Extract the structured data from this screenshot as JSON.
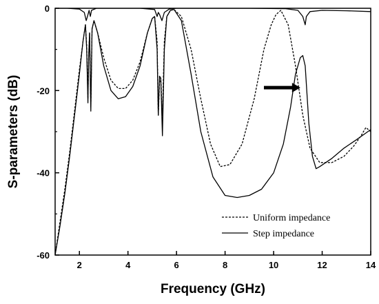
{
  "chart_data": {
    "type": "line",
    "xlabel": "Frequency (GHz)",
    "ylabel": "S-parameters (dB)",
    "xlim": [
      1,
      14
    ],
    "ylim": [
      -60,
      0
    ],
    "xticks": [
      2,
      4,
      6,
      8,
      10,
      12,
      14
    ],
    "yticks": [
      0,
      -20,
      -40,
      -60
    ],
    "grid": false,
    "legend": {
      "position": "bottom-right"
    },
    "annotation": {
      "type": "arrow",
      "from": [
        9.6,
        -19.3
      ],
      "to": [
        11.1,
        -19.3
      ]
    },
    "series": [
      {
        "name": "Uniform impedance",
        "style": "dashed",
        "color": "#000000",
        "points": [
          [
            1.0,
            -60
          ],
          [
            1.2,
            -52
          ],
          [
            1.4,
            -44
          ],
          [
            1.6,
            -35
          ],
          [
            1.8,
            -25
          ],
          [
            2.0,
            -15
          ],
          [
            2.15,
            -8
          ],
          [
            2.25,
            -4
          ],
          [
            2.3,
            -9
          ],
          [
            2.35,
            -22
          ],
          [
            2.38,
            -12
          ],
          [
            2.42,
            -6
          ],
          [
            2.47,
            -24
          ],
          [
            2.52,
            -5
          ],
          [
            2.6,
            -3
          ],
          [
            2.75,
            -6
          ],
          [
            3.0,
            -12
          ],
          [
            3.3,
            -17.5
          ],
          [
            3.6,
            -19.5
          ],
          [
            3.9,
            -19.5
          ],
          [
            4.2,
            -17.5
          ],
          [
            4.5,
            -13
          ],
          [
            4.8,
            -6
          ],
          [
            5.0,
            -2.5
          ],
          [
            5.1,
            -2
          ],
          [
            5.2,
            -8
          ],
          [
            5.25,
            -26
          ],
          [
            5.3,
            -18
          ],
          [
            5.35,
            -17
          ],
          [
            5.42,
            -26
          ],
          [
            5.5,
            -8
          ],
          [
            5.6,
            -2
          ],
          [
            5.75,
            -0.5
          ],
          [
            5.9,
            -0.3
          ],
          [
            6.2,
            -2
          ],
          [
            6.6,
            -10
          ],
          [
            7.0,
            -22
          ],
          [
            7.4,
            -33
          ],
          [
            7.8,
            -38.5
          ],
          [
            8.2,
            -38
          ],
          [
            8.7,
            -33
          ],
          [
            9.2,
            -22
          ],
          [
            9.6,
            -10
          ],
          [
            9.9,
            -4
          ],
          [
            10.1,
            -1.5
          ],
          [
            10.3,
            -0.5
          ],
          [
            10.6,
            -4
          ],
          [
            10.9,
            -14
          ],
          [
            11.2,
            -26
          ],
          [
            11.5,
            -34
          ],
          [
            11.9,
            -37.5
          ],
          [
            12.4,
            -37.5
          ],
          [
            12.9,
            -36
          ],
          [
            13.3,
            -33.5
          ],
          [
            13.6,
            -31
          ],
          [
            13.8,
            -29
          ],
          [
            14.0,
            -30
          ]
        ]
      },
      {
        "name": "Step impedance",
        "style": "solid",
        "color": "#000000",
        "points": [
          [
            1.0,
            -60
          ],
          [
            1.2,
            -53
          ],
          [
            1.4,
            -45
          ],
          [
            1.6,
            -36
          ],
          [
            1.8,
            -26
          ],
          [
            2.0,
            -16
          ],
          [
            2.15,
            -8
          ],
          [
            2.25,
            -4
          ],
          [
            2.3,
            -10
          ],
          [
            2.35,
            -23
          ],
          [
            2.38,
            -12
          ],
          [
            2.42,
            -6
          ],
          [
            2.47,
            -25
          ],
          [
            2.52,
            -5
          ],
          [
            2.6,
            -3
          ],
          [
            2.75,
            -6
          ],
          [
            3.0,
            -14
          ],
          [
            3.3,
            -20
          ],
          [
            3.6,
            -22
          ],
          [
            3.9,
            -21.5
          ],
          [
            4.2,
            -19
          ],
          [
            4.5,
            -14
          ],
          [
            4.8,
            -6
          ],
          [
            5.0,
            -2.5
          ],
          [
            5.1,
            -2
          ],
          [
            5.2,
            -10
          ],
          [
            5.25,
            -26
          ],
          [
            5.3,
            -16.5
          ],
          [
            5.35,
            -17
          ],
          [
            5.42,
            -31
          ],
          [
            5.5,
            -10
          ],
          [
            5.6,
            -2
          ],
          [
            5.75,
            -0.5
          ],
          [
            5.9,
            -0.3
          ],
          [
            6.2,
            -3
          ],
          [
            6.6,
            -16
          ],
          [
            7.0,
            -30
          ],
          [
            7.5,
            -41
          ],
          [
            8.0,
            -45.5
          ],
          [
            8.5,
            -46
          ],
          [
            9.0,
            -45.5
          ],
          [
            9.5,
            -44
          ],
          [
            10.0,
            -40
          ],
          [
            10.4,
            -33
          ],
          [
            10.7,
            -24
          ],
          [
            10.9,
            -16
          ],
          [
            11.1,
            -12
          ],
          [
            11.2,
            -11.5
          ],
          [
            11.3,
            -14
          ],
          [
            11.45,
            -28
          ],
          [
            11.6,
            -36
          ],
          [
            11.75,
            -39
          ],
          [
            11.9,
            -38.5
          ],
          [
            12.4,
            -36.5
          ],
          [
            12.9,
            -34
          ],
          [
            13.4,
            -32
          ],
          [
            14.0,
            -29.5
          ]
        ]
      },
      {
        "style": "solid",
        "color": "#000000",
        "points": [
          [
            1.0,
            0
          ],
          [
            1.5,
            0
          ],
          [
            2.0,
            -0.2
          ],
          [
            2.2,
            -1
          ],
          [
            2.28,
            -3
          ],
          [
            2.33,
            -2
          ],
          [
            2.4,
            -0.5
          ],
          [
            2.45,
            -2
          ],
          [
            2.5,
            -0.5
          ],
          [
            2.7,
            0
          ],
          [
            4.5,
            0
          ],
          [
            5.1,
            -0.3
          ],
          [
            5.2,
            -2
          ],
          [
            5.25,
            -1
          ],
          [
            5.3,
            -1.5
          ],
          [
            5.4,
            -3
          ],
          [
            5.5,
            -1
          ],
          [
            5.7,
            -0.2
          ],
          [
            6.0,
            0
          ],
          [
            9.0,
            0
          ],
          [
            10.5,
            -0.1
          ],
          [
            11.0,
            -0.5
          ],
          [
            11.2,
            -2
          ],
          [
            11.3,
            -4
          ],
          [
            11.35,
            -2
          ],
          [
            11.5,
            -0.8
          ],
          [
            12.0,
            -0.5
          ],
          [
            13.0,
            -0.6
          ],
          [
            14.0,
            -0.8
          ]
        ]
      }
    ]
  }
}
